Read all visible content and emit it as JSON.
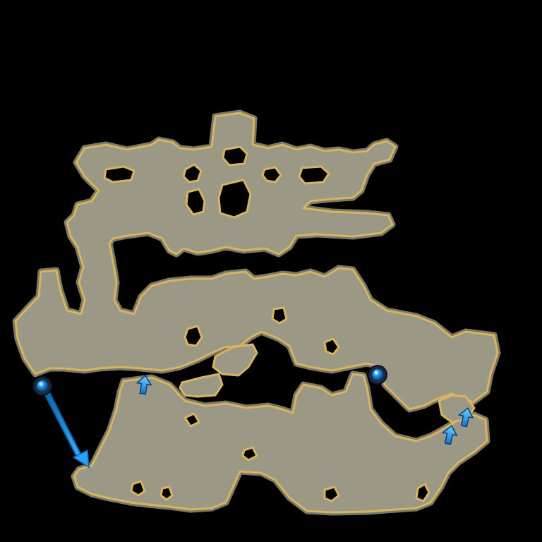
{
  "map": {
    "colors": {
      "background": "#000000",
      "floor": "#9c9886",
      "edge_glow": "#d7b560",
      "inner_rim": "#7c7869",
      "waypoint_core": "#1f8be8",
      "waypoint_ring": "#1b2b44",
      "arrow": "#2aa3f0",
      "arrow_dark": "#0c5da8"
    },
    "markers": [
      {
        "name": "waypoint-west",
        "icon": "blue-orb-icon"
      },
      {
        "name": "waypoint-central",
        "icon": "blue-orb-icon"
      }
    ],
    "arrows": [
      {
        "name": "route-arrow-diagonal",
        "icon": "arrow-down-right-icon"
      },
      {
        "name": "exit-arrow-1",
        "icon": "arrow-up-icon"
      },
      {
        "name": "exit-arrow-2",
        "icon": "arrow-up-icon"
      },
      {
        "name": "exit-arrow-3",
        "icon": "arrow-up-icon"
      }
    ]
  }
}
